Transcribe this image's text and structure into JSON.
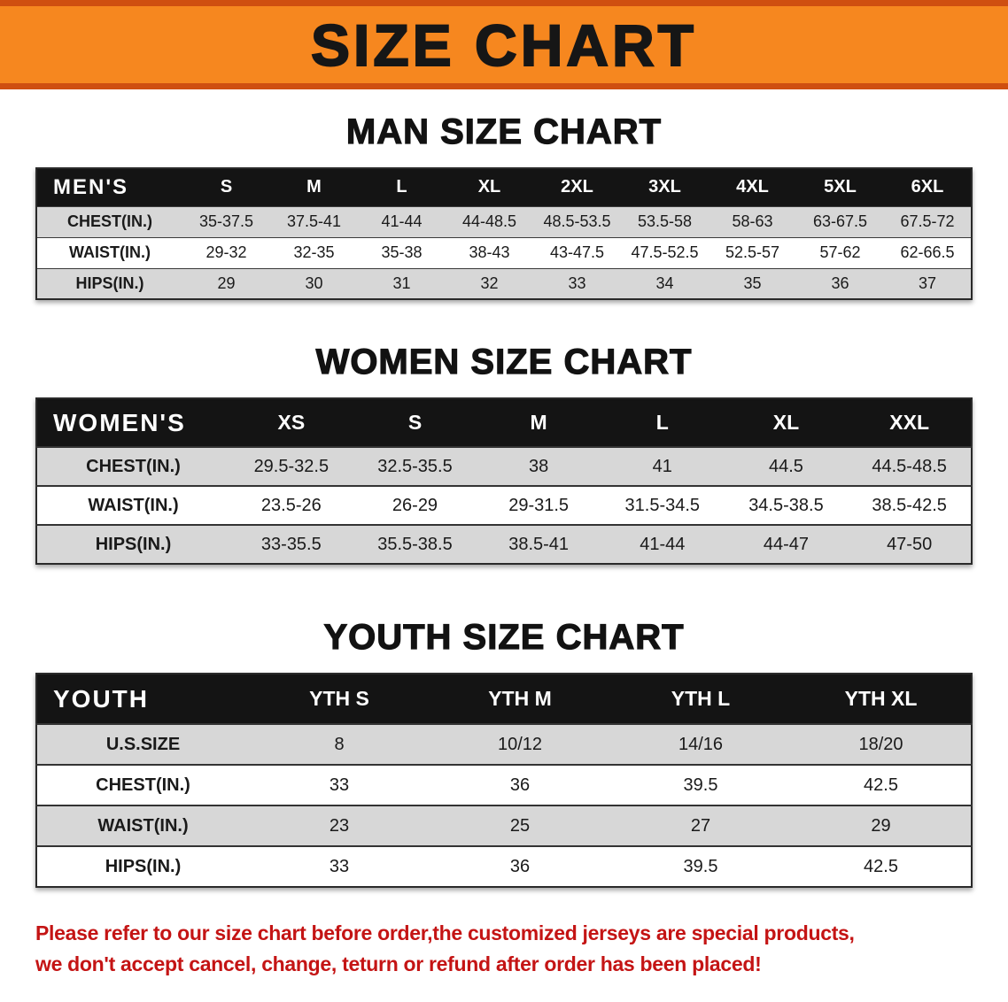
{
  "banner": {
    "title": "SIZE CHART"
  },
  "colors": {
    "banner_bg": "#f6871f",
    "banner_border": "#cf4f10",
    "header_bg": "#141414",
    "stripe": "#d7d7d7",
    "note_text": "#c41414"
  },
  "sections": [
    {
      "heading": "MAN SIZE CHART",
      "group_label": "MEN'S",
      "columns": [
        "S",
        "M",
        "L",
        "XL",
        "2XL",
        "3XL",
        "4XL",
        "5XL",
        "6XL"
      ],
      "rows": [
        {
          "label": "CHEST(IN.)",
          "values": [
            "35-37.5",
            "37.5-41",
            "41-44",
            "44-48.5",
            "48.5-53.5",
            "53.5-58",
            "58-63",
            "63-67.5",
            "67.5-72"
          ]
        },
        {
          "label": "WAIST(IN.)",
          "values": [
            "29-32",
            "32-35",
            "35-38",
            "38-43",
            "43-47.5",
            "47.5-52.5",
            "52.5-57",
            "57-62",
            "62-66.5"
          ]
        },
        {
          "label": "HIPS(IN.)",
          "values": [
            "29",
            "30",
            "31",
            "32",
            "33",
            "34",
            "35",
            "36",
            "37"
          ]
        }
      ]
    },
    {
      "heading": "WOMEN SIZE CHART",
      "group_label": "WOMEN'S",
      "columns": [
        "XS",
        "S",
        "M",
        "L",
        "XL",
        "XXL"
      ],
      "rows": [
        {
          "label": "CHEST(IN.)",
          "values": [
            "29.5-32.5",
            "32.5-35.5",
            "38",
            "41",
            "44.5",
            "44.5-48.5"
          ]
        },
        {
          "label": "WAIST(IN.)",
          "values": [
            "23.5-26",
            "26-29",
            "29-31.5",
            "31.5-34.5",
            "34.5-38.5",
            "38.5-42.5"
          ]
        },
        {
          "label": "HIPS(IN.)",
          "values": [
            "33-35.5",
            "35.5-38.5",
            "38.5-41",
            "41-44",
            "44-47",
            "47-50"
          ]
        }
      ]
    },
    {
      "heading": "YOUTH SIZE CHART",
      "group_label": "YOUTH",
      "columns": [
        "YTH S",
        "YTH M",
        "YTH L",
        "YTH XL"
      ],
      "rows": [
        {
          "label": "U.S.SIZE",
          "values": [
            "8",
            "10/12",
            "14/16",
            "18/20"
          ]
        },
        {
          "label": "CHEST(IN.)",
          "values": [
            "33",
            "36",
            "39.5",
            "42.5"
          ]
        },
        {
          "label": "WAIST(IN.)",
          "values": [
            "23",
            "25",
            "27",
            "29"
          ]
        },
        {
          "label": "HIPS(IN.)",
          "values": [
            "33",
            "36",
            "39.5",
            "42.5"
          ]
        }
      ]
    }
  ],
  "footer": {
    "lines": [
      "Please refer to our size chart before order,the customized jerseys are special products,",
      "we don't accept cancel, change, teturn or refund after order has been placed!"
    ]
  }
}
